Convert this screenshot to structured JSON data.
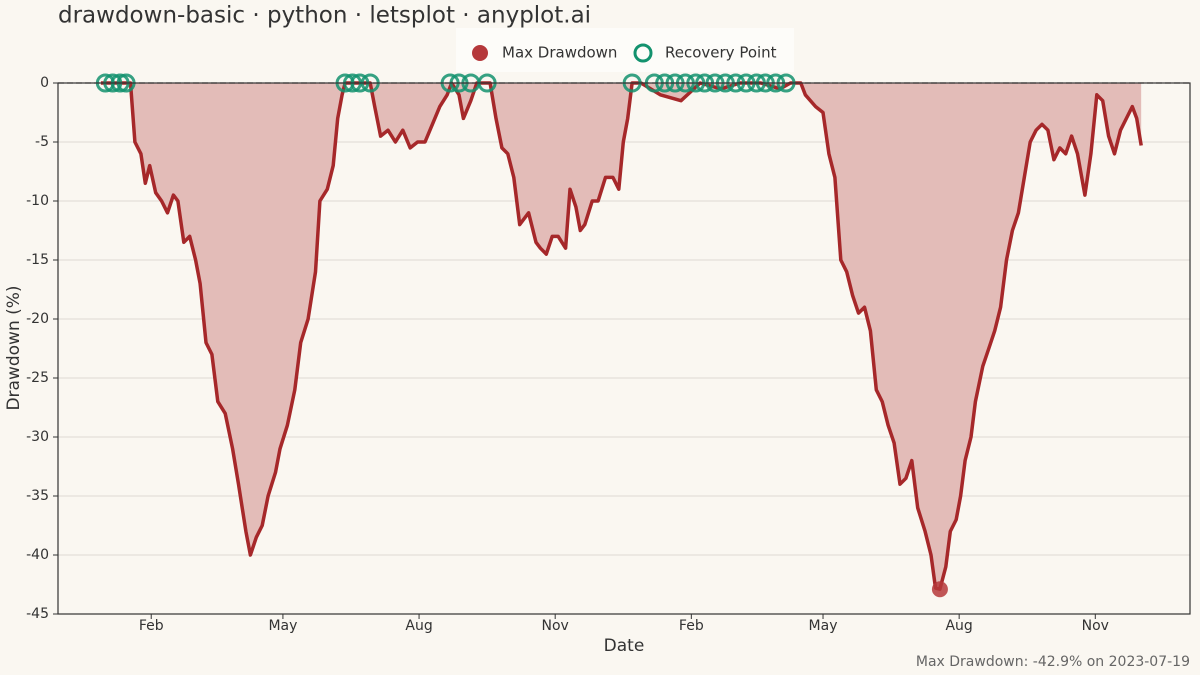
{
  "chart_data": {
    "type": "area",
    "title": "drawdown-basic · python · letsplot · anyplot.ai",
    "x_label": "Date",
    "y_label": "Drawdown (%)",
    "annotation": "Max Drawdown: -42.9% on 2023-07-19",
    "color": "#a6282a",
    "fill_color": "#e3bcb8",
    "grid": true,
    "xlim": [
      -32,
      733
    ],
    "ylim": [
      -45,
      0
    ],
    "xticks": [
      {
        "value": 31,
        "label": "Feb"
      },
      {
        "value": 120,
        "label": "May"
      },
      {
        "value": 212,
        "label": "Aug"
      },
      {
        "value": 304,
        "label": "Nov"
      },
      {
        "value": 396,
        "label": "Feb"
      },
      {
        "value": 485,
        "label": "May"
      },
      {
        "value": 577,
        "label": "Aug"
      },
      {
        "value": 669,
        "label": "Nov"
      }
    ],
    "yticks": [
      0,
      -5,
      -10,
      -15,
      -20,
      -25,
      -30,
      -35,
      -40,
      -45
    ],
    "x": [
      -3,
      17,
      20,
      24,
      27,
      30,
      34,
      38,
      42,
      46,
      49,
      53,
      57,
      61,
      64,
      68,
      72,
      76,
      81,
      86,
      90,
      95,
      98,
      102,
      106,
      110,
      115,
      118,
      123,
      128,
      132,
      137,
      142,
      145,
      150,
      154,
      157,
      160,
      162,
      167,
      172,
      179,
      182,
      186,
      191,
      196,
      201,
      206,
      211,
      216,
      221,
      226,
      231,
      234,
      239,
      242,
      247,
      251,
      255,
      260,
      264,
      268,
      272,
      276,
      280,
      286,
      291,
      294,
      298,
      302,
      306,
      311,
      314,
      318,
      321,
      324,
      329,
      333,
      338,
      343,
      347,
      350,
      353,
      356,
      362,
      375,
      389,
      402,
      416,
      429,
      443,
      456,
      463,
      470,
      473,
      480,
      485,
      489,
      493,
      497,
      501,
      505,
      509,
      513,
      517,
      521,
      525,
      529,
      533,
      537,
      541,
      545,
      549,
      554,
      558,
      561,
      564,
      568,
      571,
      575,
      578,
      581,
      585,
      588,
      593,
      597,
      601,
      605,
      609,
      613,
      617,
      621,
      625,
      629,
      633,
      637,
      641,
      645,
      649,
      653,
      657,
      662,
      666,
      670,
      674,
      678,
      682,
      686,
      690,
      694,
      697,
      700
    ],
    "values": [
      0,
      0,
      -5,
      -6,
      -8.5,
      -7,
      -9.3,
      -10,
      -11,
      -9.5,
      -10,
      -13.5,
      -13,
      -15,
      -17,
      -22,
      -23,
      -27,
      -28,
      -31,
      -34,
      -38,
      -40,
      -38.5,
      -37.5,
      -35,
      -33,
      -31,
      -29,
      -26,
      -22,
      -20,
      -16,
      -10,
      -9,
      -7,
      -3,
      -1,
      0,
      0,
      0,
      0,
      -2,
      -4.5,
      -4,
      -5,
      -4,
      -5.5,
      -5,
      -5,
      -3.5,
      -2,
      -1,
      0,
      -1,
      -3,
      -1.5,
      0,
      0,
      0,
      -3,
      -5.5,
      -6,
      -8,
      -12,
      -11,
      -13.5,
      -14,
      -14.5,
      -13,
      -13,
      -14,
      -9,
      -10.5,
      -12.5,
      -12,
      -10,
      -10,
      -8,
      -8,
      -9,
      -5,
      -3,
      0,
      0,
      -1,
      -1.5,
      0,
      -0.5,
      0,
      0,
      -0.5,
      0,
      0,
      -1,
      -2,
      -2.5,
      -6,
      -8,
      -15,
      -16,
      -18,
      -19.5,
      -19,
      -21,
      -26,
      -27,
      -29,
      -30.5,
      -34,
      -33.5,
      -32,
      -36,
      -38,
      -40,
      -42.8,
      -42.9,
      -41,
      -38,
      -37,
      -35,
      -32,
      -30,
      -27,
      -24,
      -22.5,
      -21,
      -19,
      -15,
      -12.5,
      -11,
      -8,
      -5,
      -4,
      -3.5,
      -4,
      -6.5,
      -5.5,
      -6,
      -4.5,
      -6,
      -9.5,
      -6,
      -1,
      -1.5,
      -4.5,
      -6,
      -4,
      -3,
      -2,
      -3,
      -5.3
    ],
    "markers": [
      {
        "name": "Max Drawdown",
        "color": "#b5383b",
        "x": [
          564
        ],
        "values": [
          -42.9
        ]
      },
      {
        "name": "Recovery Point",
        "color": "#13926e",
        "x": [
          0,
          5,
          10,
          14,
          162,
          167,
          172,
          179,
          233,
          239,
          247,
          258,
          356,
          371,
          378,
          385,
          392,
          399,
          405,
          412,
          419,
          426,
          433,
          440,
          446,
          453,
          460
        ],
        "values": [
          0,
          0,
          0,
          0,
          0,
          0,
          0,
          0,
          0,
          0,
          0,
          0,
          0,
          0,
          0,
          0,
          0,
          0,
          0,
          0,
          0,
          0,
          0,
          0,
          0,
          0,
          0
        ]
      }
    ]
  }
}
